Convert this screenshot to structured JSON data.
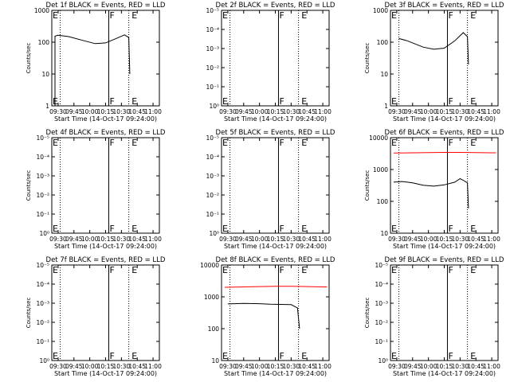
{
  "colors": {
    "events": "#000000",
    "lld": "#ff0000",
    "background": "#ffffff"
  },
  "chart_data": [
    {
      "type": "line",
      "title": "Det 1f BLACK = Events, RED = LLD",
      "ylabel": "Counts/sec",
      "xlabel": "Start Time (14-Oct-17 09:24:00)",
      "x_ticks": [
        "09:30",
        "09:45",
        "10:00",
        "10:15",
        "10:30",
        "10:45",
        "11:00"
      ],
      "y_scale": "log",
      "y_ticks": [
        "1",
        "10",
        "100",
        "1000"
      ],
      "xlim": [
        "09:24",
        "11:06"
      ],
      "ylim": [
        1,
        1000
      ],
      "markers": [
        {
          "label": "E",
          "time": "09:24"
        },
        {
          "label": "F",
          "time": "10:18"
        },
        {
          "label": "E",
          "time": "10:39"
        }
      ],
      "dotted_lines": [
        "09:32",
        "10:37"
      ],
      "solid_lines": [
        "10:18"
      ],
      "series": [
        {
          "color": "#000000",
          "points": [
            [
              "09:27",
              1
            ],
            [
              "09:27",
              155
            ],
            [
              "09:30",
              165
            ],
            [
              "09:40",
              150
            ],
            [
              "09:55",
              110
            ],
            [
              "10:05",
              90
            ],
            [
              "10:15",
              95
            ],
            [
              "10:25",
              130
            ],
            [
              "10:33",
              170
            ],
            [
              "10:37",
              140
            ],
            [
              "10:38",
              10
            ]
          ]
        }
      ]
    },
    {
      "type": "line",
      "title": "Det 2f BLACK = Events, RED = LLD",
      "ylabel": "",
      "xlabel": "Start Time (14-Oct-17 09:24:00)",
      "x_ticks": [
        "09:30",
        "09:45",
        "10:00",
        "10:15",
        "10:30",
        "10:45",
        "11:00"
      ],
      "y_scale": "log",
      "y_ticks": [
        "10⁰",
        "10⁻¹",
        "10⁻²",
        "10⁻³",
        "10⁻⁴",
        "10⁻⁵"
      ],
      "xlim": [
        "09:24",
        "11:06"
      ],
      "ylim": [
        0,
        5
      ],
      "markers": [
        {
          "label": "E",
          "time": "09:24"
        },
        {
          "label": "F",
          "time": "10:18"
        },
        {
          "label": "E",
          "time": "10:39"
        }
      ],
      "dotted_lines": [
        "09:32",
        "10:37"
      ],
      "solid_lines": [
        "10:18"
      ],
      "series": []
    },
    {
      "type": "line",
      "title": "Det 3f BLACK = Events, RED = LLD",
      "ylabel": "Counts/sec",
      "xlabel": "Start Time (14-Oct-17 09:24:00)",
      "x_ticks": [
        "09:30",
        "09:45",
        "10:00",
        "10:15",
        "10:30",
        "10:45",
        "11:00"
      ],
      "y_scale": "log",
      "y_ticks": [
        "1",
        "10",
        "100",
        "1000"
      ],
      "xlim": [
        "09:24",
        "11:06"
      ],
      "ylim": [
        1,
        1000
      ],
      "markers": [
        {
          "label": "E",
          "time": "09:24"
        },
        {
          "label": "F",
          "time": "10:18"
        },
        {
          "label": "E",
          "time": "10:39"
        }
      ],
      "dotted_lines": [
        "09:32",
        "10:37"
      ],
      "solid_lines": [
        "10:18"
      ],
      "series": [
        {
          "color": "#000000",
          "points": [
            [
              "09:32",
              130
            ],
            [
              "09:40",
              110
            ],
            [
              "09:55",
              70
            ],
            [
              "10:05",
              60
            ],
            [
              "10:15",
              65
            ],
            [
              "10:25",
              110
            ],
            [
              "10:33",
              200
            ],
            [
              "10:37",
              150
            ],
            [
              "10:38",
              20
            ]
          ]
        }
      ]
    },
    {
      "type": "line",
      "title": "Det 4f BLACK = Events, RED = LLD",
      "ylabel": "Counts/sec",
      "xlabel": "Start Time (14-Oct-17 09:24:00)",
      "x_ticks": [
        "09:30",
        "09:45",
        "10:00",
        "10:15",
        "10:30",
        "10:45",
        "11:00"
      ],
      "y_scale": "log",
      "y_ticks": [
        "10⁰",
        "10⁻¹",
        "10⁻²",
        "10⁻³",
        "10⁻⁴",
        "10⁻⁵"
      ],
      "xlim": [
        "09:24",
        "11:06"
      ],
      "ylim": [
        0,
        5
      ],
      "markers": [
        {
          "label": "E",
          "time": "09:24"
        },
        {
          "label": "F",
          "time": "10:18"
        },
        {
          "label": "E",
          "time": "10:39"
        }
      ],
      "dotted_lines": [
        "09:32",
        "10:37"
      ],
      "solid_lines": [
        "10:18"
      ],
      "series": []
    },
    {
      "type": "line",
      "title": "Det 5f BLACK = Events, RED = LLD",
      "ylabel": "",
      "xlabel": "Start Time (14-Oct-17 09:24:00)",
      "x_ticks": [
        "09:30",
        "09:45",
        "10:00",
        "10:15",
        "10:30",
        "10:45",
        "11:00"
      ],
      "y_scale": "log",
      "y_ticks": [
        "10⁰",
        "10⁻¹",
        "10⁻²",
        "10⁻³",
        "10⁻⁴",
        "10⁻⁵"
      ],
      "xlim": [
        "09:24",
        "11:06"
      ],
      "ylim": [
        0,
        5
      ],
      "markers": [
        {
          "label": "E",
          "time": "09:24"
        },
        {
          "label": "F",
          "time": "10:18"
        },
        {
          "label": "E",
          "time": "10:39"
        }
      ],
      "dotted_lines": [
        "09:32",
        "10:37"
      ],
      "solid_lines": [
        "10:18"
      ],
      "series": []
    },
    {
      "type": "line",
      "title": "Det 6f BLACK = Events, RED = LLD",
      "ylabel": "Counts/sec",
      "xlabel": "Start Time (14-Oct-17 09:24:00)",
      "x_ticks": [
        "09:30",
        "09:45",
        "10:00",
        "10:15",
        "10:30",
        "10:45",
        "11:00"
      ],
      "y_scale": "log",
      "y_ticks": [
        "10",
        "100",
        "1000",
        "10000"
      ],
      "xlim": [
        "09:24",
        "11:06"
      ],
      "ylim": [
        10,
        10000
      ],
      "markers": [
        {
          "label": "E",
          "time": "09:24"
        },
        {
          "label": "F",
          "time": "10:18"
        },
        {
          "label": "E",
          "time": "10:39"
        }
      ],
      "dotted_lines": [
        "09:32",
        "10:37"
      ],
      "solid_lines": [
        "10:18"
      ],
      "series": [
        {
          "color": "#ff0000",
          "points": [
            [
              "09:27",
              3300
            ],
            [
              "09:45",
              3350
            ],
            [
              "10:00",
              3400
            ],
            [
              "10:15",
              3450
            ],
            [
              "10:30",
              3450
            ],
            [
              "10:45",
              3400
            ],
            [
              "11:00",
              3350
            ],
            [
              "11:04",
              3350
            ]
          ]
        },
        {
          "color": "#000000",
          "points": [
            [
              "09:27",
              400
            ],
            [
              "09:35",
              420
            ],
            [
              "09:45",
              380
            ],
            [
              "09:55",
              320
            ],
            [
              "10:05",
              300
            ],
            [
              "10:15",
              330
            ],
            [
              "10:25",
              400
            ],
            [
              "10:30",
              520
            ],
            [
              "10:33",
              460
            ],
            [
              "10:37",
              380
            ],
            [
              "10:38",
              60
            ]
          ]
        }
      ]
    },
    {
      "type": "line",
      "title": "Det 7f BLACK = Events, RED = LLD",
      "ylabel": "Counts/sec",
      "xlabel": "Start Time (14-Oct-17 09:24:00)",
      "x_ticks": [
        "09:30",
        "09:45",
        "10:00",
        "10:15",
        "10:30",
        "10:45",
        "11:00"
      ],
      "y_scale": "log",
      "y_ticks": [
        "10⁰",
        "10⁻¹",
        "10⁻²",
        "10⁻³",
        "10⁻⁴",
        "10⁻⁵"
      ],
      "xlim": [
        "09:24",
        "11:06"
      ],
      "ylim": [
        0,
        5
      ],
      "markers": [
        {
          "label": "E",
          "time": "09:24"
        },
        {
          "label": "F",
          "time": "10:18"
        },
        {
          "label": "E",
          "time": "10:39"
        }
      ],
      "dotted_lines": [
        "09:32",
        "10:37"
      ],
      "solid_lines": [
        "10:18"
      ],
      "series": []
    },
    {
      "type": "line",
      "title": "Det 8f BLACK = Events, RED = LLD",
      "ylabel": "",
      "xlabel": "Start Time (14-Oct-17 09:24:00)",
      "x_ticks": [
        "09:30",
        "09:45",
        "10:00",
        "10:15",
        "10:30",
        "10:45",
        "11:00"
      ],
      "y_scale": "log",
      "y_ticks": [
        "10",
        "100",
        "1000",
        "10000"
      ],
      "xlim": [
        "09:24",
        "11:06"
      ],
      "ylim": [
        10,
        10000
      ],
      "markers": [
        {
          "label": "E",
          "time": "09:24"
        },
        {
          "label": "F",
          "time": "10:18"
        },
        {
          "label": "E",
          "time": "10:39"
        }
      ],
      "dotted_lines": [
        "09:32",
        "10:37"
      ],
      "solid_lines": [
        "10:18"
      ],
      "series": [
        {
          "color": "#ff0000",
          "points": [
            [
              "09:27",
              2000
            ],
            [
              "09:45",
              2050
            ],
            [
              "10:00",
              2100
            ],
            [
              "10:15",
              2150
            ],
            [
              "10:30",
              2150
            ],
            [
              "10:45",
              2100
            ],
            [
              "11:00",
              2050
            ],
            [
              "11:04",
              2050
            ]
          ]
        },
        {
          "color": "#000000",
          "points": [
            [
              "09:30",
              600
            ],
            [
              "09:45",
              620
            ],
            [
              "10:00",
              610
            ],
            [
              "10:10",
              590
            ],
            [
              "10:20",
              580
            ],
            [
              "10:30",
              570
            ],
            [
              "10:36",
              450
            ],
            [
              "10:38",
              100
            ]
          ]
        }
      ]
    },
    {
      "type": "line",
      "title": "Det 9f BLACK = Events, RED = LLD",
      "ylabel": "Counts/sec",
      "xlabel": "Start Time (14-Oct-17 09:24:00)",
      "x_ticks": [
        "09:30",
        "09:45",
        "10:00",
        "10:15",
        "10:30",
        "10:45",
        "11:00"
      ],
      "y_scale": "log",
      "y_ticks": [
        "10⁰",
        "10⁻¹",
        "10⁻²",
        "10⁻³",
        "10⁻⁴",
        "10⁻⁵"
      ],
      "xlim": [
        "09:24",
        "11:06"
      ],
      "ylim": [
        0,
        5
      ],
      "markers": [
        {
          "label": "E",
          "time": "09:24"
        },
        {
          "label": "F",
          "time": "10:18"
        },
        {
          "label": "E",
          "time": "10:39"
        }
      ],
      "dotted_lines": [
        "09:32",
        "10:37"
      ],
      "solid_lines": [
        "10:18"
      ],
      "series": []
    }
  ]
}
